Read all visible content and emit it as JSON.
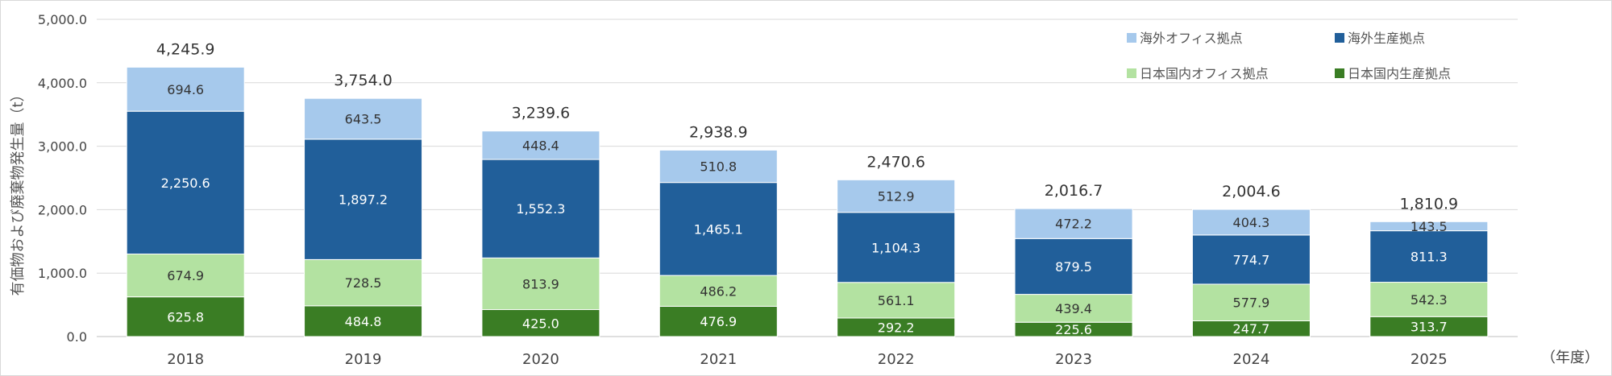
{
  "chart_data": {
    "type": "bar",
    "stacked": true,
    "categories": [
      "2018",
      "2019",
      "2020",
      "2021",
      "2022",
      "2023",
      "2024",
      "2025"
    ],
    "series": [
      {
        "name": "日本国内生産拠点",
        "color": "#3a7d24",
        "label_color": "#ffffff",
        "values": [
          625.8,
          484.8,
          425.0,
          476.9,
          292.2,
          225.6,
          247.7,
          313.7
        ]
      },
      {
        "name": "日本国内オフィス拠点",
        "color": "#b3e2a1",
        "label_color": "#333333",
        "values": [
          674.9,
          728.5,
          813.9,
          486.2,
          561.1,
          439.4,
          577.9,
          542.3
        ]
      },
      {
        "name": "海外生産拠点",
        "color": "#215f9a",
        "label_color": "#ffffff",
        "values": [
          2250.6,
          1897.2,
          1552.3,
          1465.1,
          1104.3,
          879.5,
          774.7,
          811.3
        ]
      },
      {
        "name": "海外オフィス拠点",
        "color": "#a6c9ec",
        "label_color": "#333333",
        "values": [
          694.6,
          643.5,
          448.4,
          510.8,
          512.9,
          472.2,
          404.3,
          143.5
        ]
      }
    ],
    "value_labels": [
      [
        "625.8",
        "484.8",
        "425.0",
        "476.9",
        "292.2",
        "225.6",
        "247.7",
        "313.7"
      ],
      [
        "674.9",
        "728.5",
        "813.9",
        "486.2",
        "561.1",
        "439.4",
        "577.9",
        "542.3"
      ],
      [
        "2,250.6",
        "1,897.2",
        "1,552.3",
        "1,465.1",
        "1,104.3",
        "879.5",
        "774.7",
        "811.3"
      ],
      [
        "694.6",
        "643.5",
        "448.4",
        "510.8",
        "512.9",
        "472.2",
        "404.3",
        "143.5"
      ]
    ],
    "totals": [
      4245.9,
      3754.0,
      3239.6,
      2938.9,
      2470.6,
      2016.7,
      2004.6,
      1810.9
    ],
    "total_labels": [
      "4,245.9",
      "3,754.0",
      "3,239.6",
      "2,938.9",
      "2,470.6",
      "2,016.7",
      "2,004.6",
      "1,810.9"
    ],
    "ylabel": "有価物および廃棄物発生量（t）",
    "xunit": "（年度）",
    "ylim": [
      0,
      5000
    ],
    "yticks": [
      0,
      1000,
      2000,
      3000,
      4000,
      5000
    ],
    "ytick_labels": [
      "0.0",
      "1,000.0",
      "2,000.0",
      "3,000.0",
      "4,000.0",
      "5,000.0"
    ],
    "legend_order": [
      "海外オフィス拠点",
      "海外生産拠点",
      "日本国内オフィス拠点",
      "日本国内生産拠点"
    ],
    "legend_position": "top-right",
    "grid": true,
    "gridline_color": "#d9d9d9"
  }
}
